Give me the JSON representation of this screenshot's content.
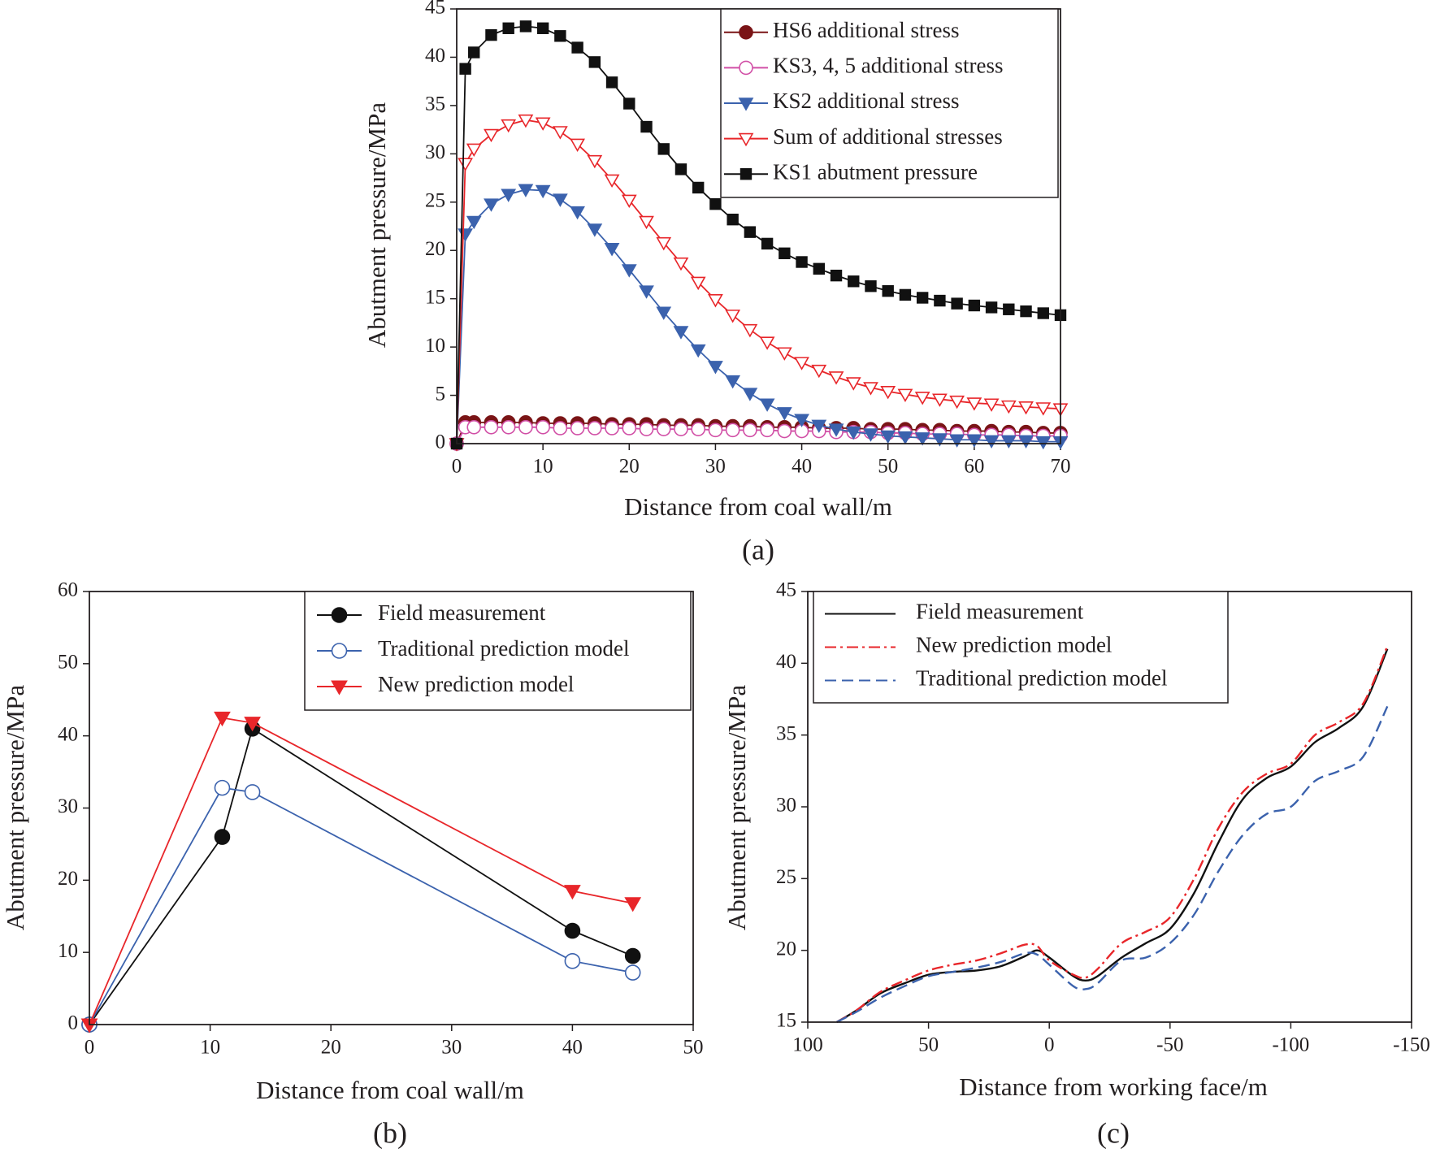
{
  "chart_data": [
    {
      "type": "line",
      "caption": "(a)",
      "xlabel": "Distance from coal wall/m",
      "ylabel": "Abutment pressure/MPa",
      "xlim": [
        0,
        70
      ],
      "ylim": [
        0,
        45
      ],
      "xticks": [
        0,
        10,
        20,
        30,
        40,
        50,
        60,
        70
      ],
      "yticks": [
        0,
        5,
        10,
        15,
        20,
        25,
        30,
        35,
        40,
        45
      ],
      "grid": false,
      "legend": "upper right",
      "x": [
        0,
        1,
        2,
        4,
        6,
        8,
        10,
        12,
        14,
        16,
        18,
        20,
        22,
        24,
        26,
        28,
        30,
        32,
        34,
        36,
        38,
        40,
        42,
        44,
        46,
        48,
        50,
        52,
        54,
        56,
        58,
        60,
        62,
        64,
        66,
        68,
        70
      ],
      "series": [
        {
          "name": "HS6 additional stress",
          "color": "#7a1416",
          "marker": "circle",
          "marker_fill": true,
          "values": [
            0,
            2.2,
            2.2,
            2.2,
            2.2,
            2.2,
            2.1,
            2.1,
            2.1,
            2.1,
            2.0,
            2.0,
            2.0,
            1.9,
            1.9,
            1.9,
            1.8,
            1.8,
            1.8,
            1.7,
            1.7,
            1.7,
            1.6,
            1.6,
            1.6,
            1.5,
            1.5,
            1.5,
            1.4,
            1.4,
            1.3,
            1.3,
            1.3,
            1.2,
            1.2,
            1.1,
            1.1
          ]
        },
        {
          "name": "KS3, 4, 5 additional stress",
          "color": "#d14fa6",
          "marker": "circle",
          "marker_fill": false,
          "values": [
            0,
            1.7,
            1.7,
            1.7,
            1.7,
            1.7,
            1.7,
            1.6,
            1.6,
            1.6,
            1.6,
            1.6,
            1.5,
            1.5,
            1.5,
            1.5,
            1.4,
            1.4,
            1.4,
            1.4,
            1.3,
            1.3,
            1.3,
            1.2,
            1.2,
            1.2,
            1.1,
            1.1,
            1.0,
            1.0,
            1.0,
            0.9,
            0.9,
            0.9,
            0.8,
            0.8,
            0.8
          ]
        },
        {
          "name": "KS2 additional stress",
          "color": "#3b62ad",
          "marker": "triangle-down",
          "marker_fill": true,
          "values": [
            0,
            21.7,
            23,
            24.8,
            25.8,
            26.3,
            26.2,
            25.3,
            24,
            22.2,
            20.2,
            18,
            15.8,
            13.6,
            11.6,
            9.7,
            8,
            6.5,
            5.2,
            4.1,
            3.2,
            2.5,
            1.9,
            1.5,
            1.2,
            1,
            0.8,
            0.7,
            0.6,
            0.5,
            0.4,
            0.4,
            0.3,
            0.3,
            0.3,
            0.2,
            0.2
          ]
        },
        {
          "name": "Sum of additional stresses",
          "color": "#e8262a",
          "marker": "triangle-down",
          "marker_fill": false,
          "values": [
            0,
            29,
            30.5,
            32,
            33,
            33.5,
            33.2,
            32.3,
            31,
            29.3,
            27.3,
            25.2,
            23,
            20.8,
            18.7,
            16.7,
            14.9,
            13.3,
            11.8,
            10.5,
            9.4,
            8.4,
            7.6,
            6.9,
            6.3,
            5.8,
            5.4,
            5.1,
            4.8,
            4.6,
            4.4,
            4.2,
            4.1,
            3.9,
            3.8,
            3.7,
            3.6
          ]
        },
        {
          "name": "KS1 abutment pressure",
          "color": "#111111",
          "marker": "square",
          "marker_fill": true,
          "values": [
            0,
            38.8,
            40.5,
            42.3,
            43,
            43.2,
            43,
            42.2,
            41,
            39.5,
            37.4,
            35.2,
            32.8,
            30.5,
            28.4,
            26.5,
            24.8,
            23.2,
            21.9,
            20.7,
            19.7,
            18.8,
            18.1,
            17.4,
            16.8,
            16.3,
            15.8,
            15.4,
            15.1,
            14.8,
            14.5,
            14.3,
            14.1,
            13.9,
            13.7,
            13.5,
            13.3
          ]
        }
      ]
    },
    {
      "type": "line",
      "caption": "(b)",
      "xlabel": "Distance from coal wall/m",
      "ylabel": "Abutment pressure/MPa",
      "xlim": [
        0,
        50
      ],
      "ylim": [
        0,
        60
      ],
      "xticks": [
        0,
        10,
        20,
        30,
        40,
        50
      ],
      "yticks": [
        0,
        10,
        20,
        30,
        40,
        50,
        60
      ],
      "grid": false,
      "legend": "upper right",
      "x": [
        0,
        11,
        13.5,
        40,
        45
      ],
      "series": [
        {
          "name": "Field measurement",
          "color": "#111111",
          "marker": "circle",
          "marker_fill": true,
          "values": [
            0,
            26,
            41,
            13,
            9.5
          ]
        },
        {
          "name": "Traditional prediction model",
          "color": "#3b62ad",
          "marker": "circle",
          "marker_fill": false,
          "values": [
            0,
            32.8,
            32.2,
            8.8,
            7.2
          ]
        },
        {
          "name": "New prediction model",
          "color": "#e8262a",
          "marker": "triangle-down",
          "marker_fill": true,
          "values": [
            0,
            42.5,
            41.8,
            18.5,
            16.8
          ]
        }
      ]
    },
    {
      "type": "line",
      "caption": "(c)",
      "xlabel": "Distance from working face/m",
      "ylabel": "Abutment pressure/MPa",
      "xlim": [
        100,
        -150
      ],
      "ylim": [
        15,
        45
      ],
      "xticks": [
        100,
        50,
        0,
        -50,
        -100,
        -150
      ],
      "yticks": [
        15,
        20,
        25,
        30,
        35,
        40,
        45
      ],
      "grid": false,
      "legend": "upper left",
      "smooth": true,
      "x": [
        88,
        80,
        70,
        60,
        50,
        40,
        30,
        20,
        10,
        5,
        0,
        -10,
        -15,
        -20,
        -30,
        -40,
        -50,
        -60,
        -70,
        -80,
        -90,
        -100,
        -110,
        -120,
        -130,
        -140
      ],
      "series": [
        {
          "name": "Field measurement",
          "color": "#111111",
          "linestyle": "solid",
          "values": [
            15,
            15.8,
            17,
            17.7,
            18.3,
            18.5,
            18.6,
            18.9,
            19.6,
            20,
            19.5,
            18.2,
            17.9,
            18.2,
            19.5,
            20.5,
            21.5,
            24,
            27.5,
            30.5,
            32,
            32.8,
            34.5,
            35.5,
            37,
            41
          ]
        },
        {
          "name": "New prediction model",
          "color": "#e8262a",
          "linestyle": "dashdot",
          "values": [
            15,
            15.8,
            17.1,
            17.9,
            18.6,
            19,
            19.3,
            19.8,
            20.4,
            20.3,
            19.3,
            18.3,
            18.1,
            18.7,
            20.5,
            21.3,
            22.3,
            25,
            28.5,
            31,
            32.3,
            33,
            35,
            35.9,
            37.2,
            41.2
          ]
        },
        {
          "name": "Traditional prediction model",
          "color": "#3b62ad",
          "linestyle": "dashed",
          "values": [
            15,
            15.7,
            16.7,
            17.5,
            18.2,
            18.5,
            18.8,
            19.2,
            19.8,
            19.7,
            19,
            17.5,
            17.3,
            17.7,
            19.3,
            19.5,
            20.5,
            22.5,
            25.5,
            28,
            29.5,
            30,
            31.8,
            32.5,
            33.5,
            37
          ]
        }
      ]
    }
  ]
}
